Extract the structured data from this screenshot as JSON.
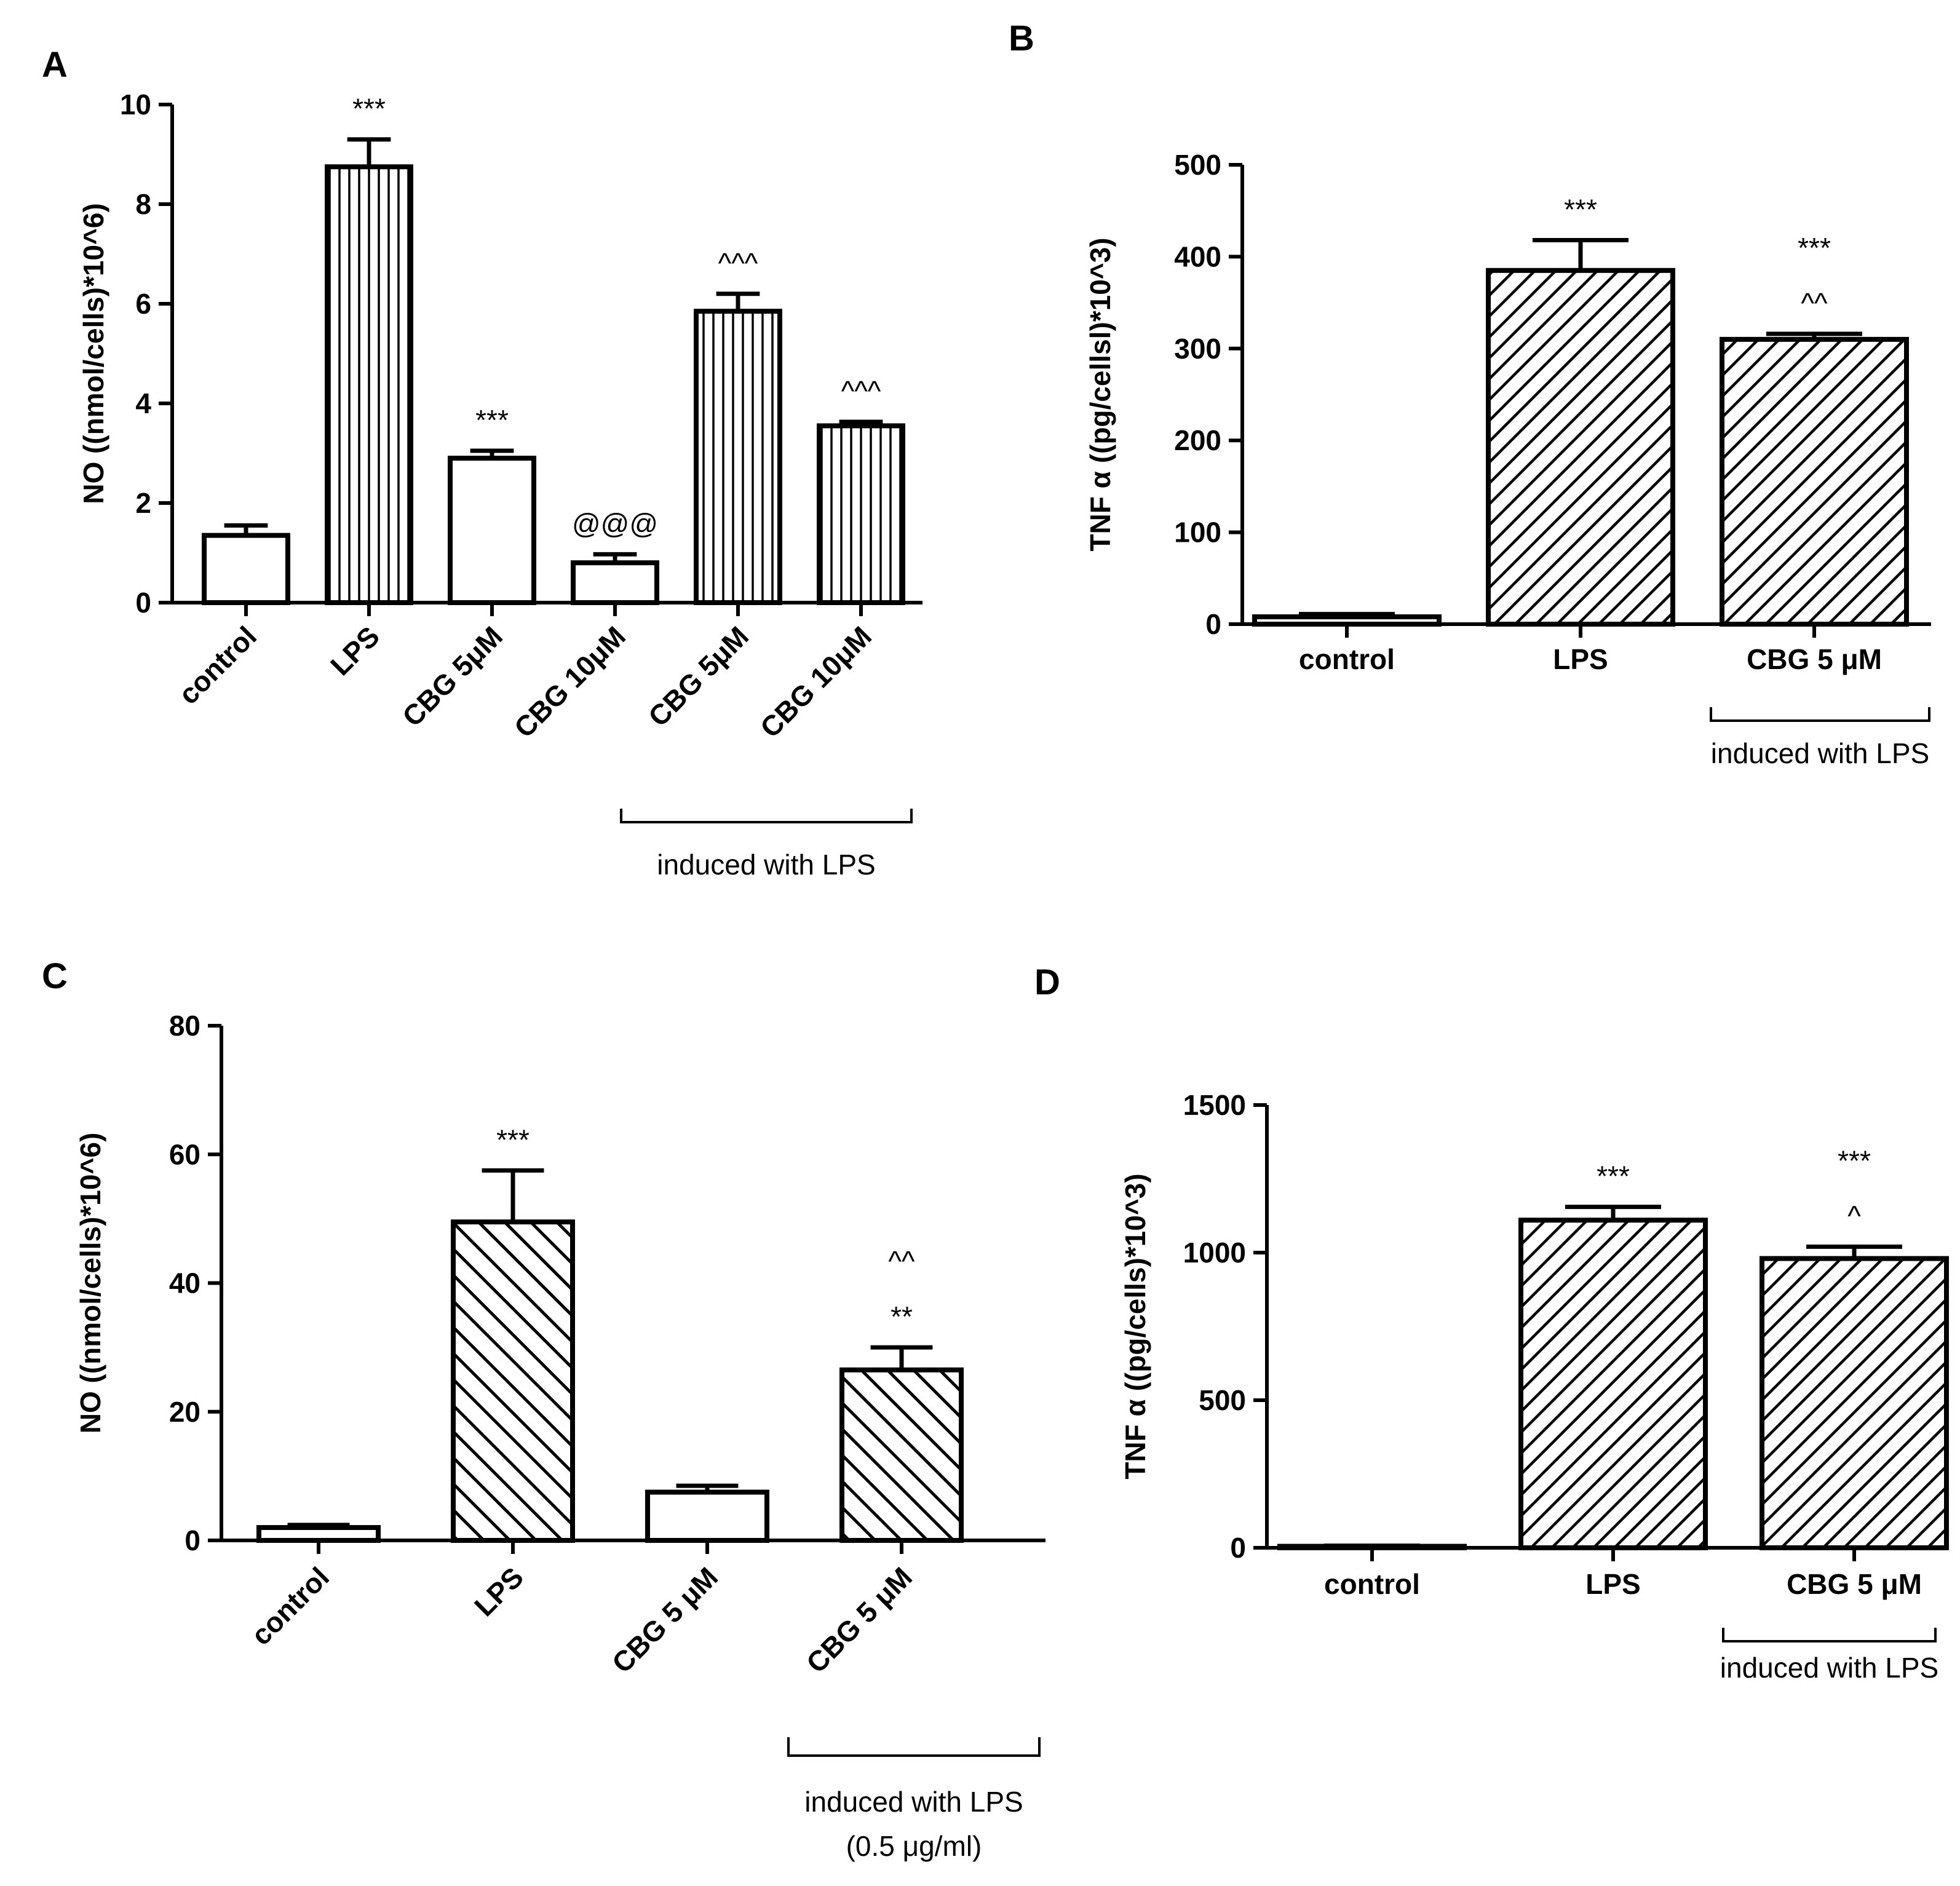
{
  "chart_data": [
    {
      "panel": "A",
      "type": "bar",
      "ylabel": "NO ((nmol/cells)*10^6)",
      "ylim": [
        0,
        10
      ],
      "yticks": [
        0,
        2,
        4,
        6,
        8,
        10
      ],
      "categories": [
        "control",
        "LPS",
        "CBG 5μM",
        "CBG 10μM",
        "CBG 5μM",
        "CBG 10μM"
      ],
      "values": [
        1.35,
        8.75,
        2.9,
        0.8,
        5.85,
        3.55
      ],
      "errors": [
        0.2,
        0.55,
        0.15,
        0.17,
        0.35,
        0.08
      ],
      "fills": [
        "white",
        "vertical",
        "white",
        "white",
        "vertical",
        "vertical"
      ],
      "annotations": [
        [],
        [
          "***"
        ],
        [
          "***"
        ],
        [
          "@@@"
        ],
        [
          "^^^"
        ],
        [
          "^^^"
        ]
      ],
      "bracket": {
        "label": "induced with LPS",
        "from": 4,
        "to": 5
      },
      "label_rotation": "angled"
    },
    {
      "panel": "B",
      "type": "bar",
      "ylabel": "TNF α ((pg/cellsl)*10^3)",
      "ylim": [
        0,
        500
      ],
      "yticks": [
        0,
        100,
        200,
        300,
        400,
        500
      ],
      "categories": [
        "control",
        "LPS",
        "CBG 5 μM"
      ],
      "values": [
        8,
        385,
        310
      ],
      "errors": [
        3,
        33,
        6
      ],
      "fills": [
        "white",
        "diag-up",
        "diag-up"
      ],
      "annotations": [
        [],
        [
          "***"
        ],
        [
          "***",
          "^^"
        ]
      ],
      "bracket": {
        "label": "induced with LPS",
        "from": 2,
        "to": 2
      },
      "label_rotation": "horizontal"
    },
    {
      "panel": "C",
      "type": "bar",
      "ylabel": "NO ((nmol/cells)*10^6)",
      "ylim": [
        0,
        80
      ],
      "yticks": [
        0,
        20,
        40,
        60,
        80
      ],
      "categories": [
        "control",
        "LPS",
        "CBG 5 μM",
        "CBG 5 μM"
      ],
      "values": [
        2,
        49.5,
        7.5,
        26.5
      ],
      "errors": [
        0.4,
        8,
        1,
        3.5
      ],
      "fills": [
        "white",
        "diag-down",
        "white",
        "diag-down"
      ],
      "annotations": [
        [],
        [
          "***"
        ],
        [],
        [
          "^^",
          "**"
        ]
      ],
      "bracket": {
        "label": "induced with LPS",
        "label2": "(0.5 μg/ml)",
        "from": 3,
        "to": 3
      },
      "label_rotation": "angled"
    },
    {
      "panel": "D",
      "type": "bar",
      "ylabel": "TNF α ((pg/cells)*10^3)",
      "ylim": [
        0,
        1500
      ],
      "yticks": [
        0,
        500,
        1000,
        1500
      ],
      "categories": [
        "control",
        "LPS",
        "CBG 5 μM"
      ],
      "values": [
        5,
        1110,
        980
      ],
      "errors": [
        2,
        45,
        40
      ],
      "fills": [
        "white",
        "diag-up",
        "diag-up"
      ],
      "annotations": [
        [],
        [
          "***"
        ],
        [
          "***",
          "^"
        ]
      ],
      "bracket": {
        "label": "induced with LPS",
        "from": 2,
        "to": 2
      },
      "label_rotation": "horizontal"
    }
  ]
}
